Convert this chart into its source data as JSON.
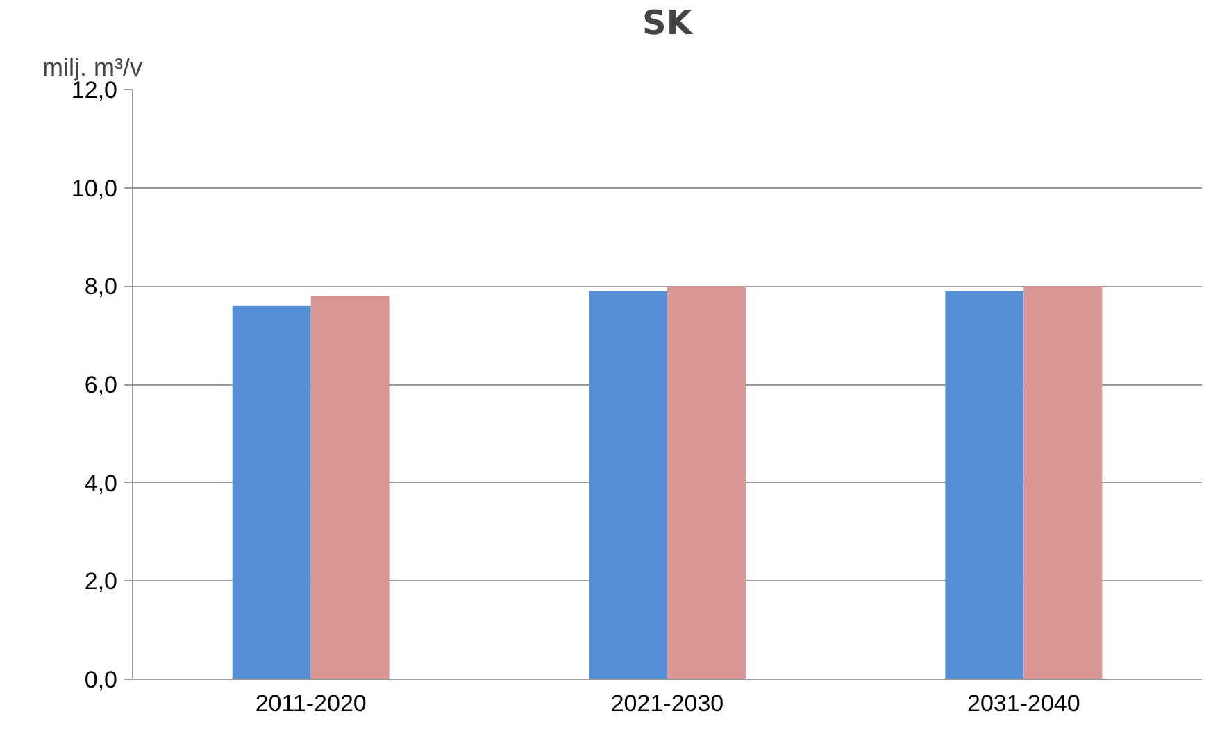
{
  "chart_data": {
    "type": "bar",
    "title": "SK",
    "ylabel": "milj. m³/v",
    "categories": [
      "2011-2020",
      "2021-2030",
      "2031-2040"
    ],
    "series": [
      {
        "color": "#558ed5",
        "values": [
          7.6,
          7.9,
          7.9
        ]
      },
      {
        "color": "#d99694",
        "values": [
          7.8,
          8.0,
          8.0
        ]
      }
    ],
    "ylim": [
      0,
      12
    ],
    "yticks": [
      {
        "value": 0,
        "label": "0,0"
      },
      {
        "value": 2,
        "label": "2,0"
      },
      {
        "value": 4,
        "label": "4,0"
      },
      {
        "value": 6,
        "label": "6,0"
      },
      {
        "value": 8,
        "label": "8,0"
      },
      {
        "value": 10,
        "label": "10,0"
      },
      {
        "value": 12,
        "label": "12,0"
      }
    ],
    "grid": "y"
  }
}
